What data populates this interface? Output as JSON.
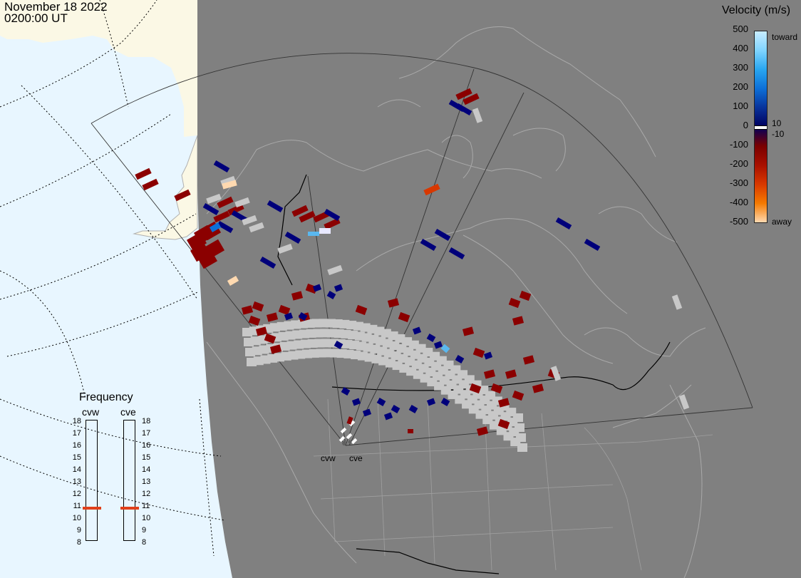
{
  "title": {
    "date": "November 18 2022",
    "time": "0200:00 UT"
  },
  "legend": {
    "title": "Velocity (m/s)",
    "ticks": [
      "500",
      "400",
      "300",
      "200",
      "100",
      "0",
      "-100",
      "-200",
      "-300",
      "-400",
      "-500"
    ],
    "side_labels": {
      "toward": "toward",
      "pos10": "10",
      "neg10": "-10",
      "away": "away"
    },
    "colors": [
      "#c8ecff",
      "#7fd4ff",
      "#28a6f0",
      "#0c6fd8",
      "#08329a",
      "#00005e",
      "#7a0000",
      "#a81000",
      "#d83800",
      "#f57a00",
      "#ffd9b0"
    ]
  },
  "frequency": {
    "title": "Frequency",
    "radars": [
      "cvw",
      "cve"
    ],
    "scale": [
      "18",
      "17",
      "16",
      "15",
      "14",
      "13",
      "12",
      "11",
      "10",
      "9",
      "8"
    ],
    "selected_mhz": {
      "cvw": 10.8,
      "cve": 10.8
    },
    "marker_color": "#e0401a"
  },
  "sites": [
    {
      "name": "cvw"
    },
    {
      "name": "cve"
    }
  ],
  "colors": {
    "ocean": "#e8f6ff",
    "land_day": "#fbf8e5",
    "land_night": "#808080",
    "coast": "#a9a9a9",
    "ground_scatter": "#c8c8c8"
  }
}
